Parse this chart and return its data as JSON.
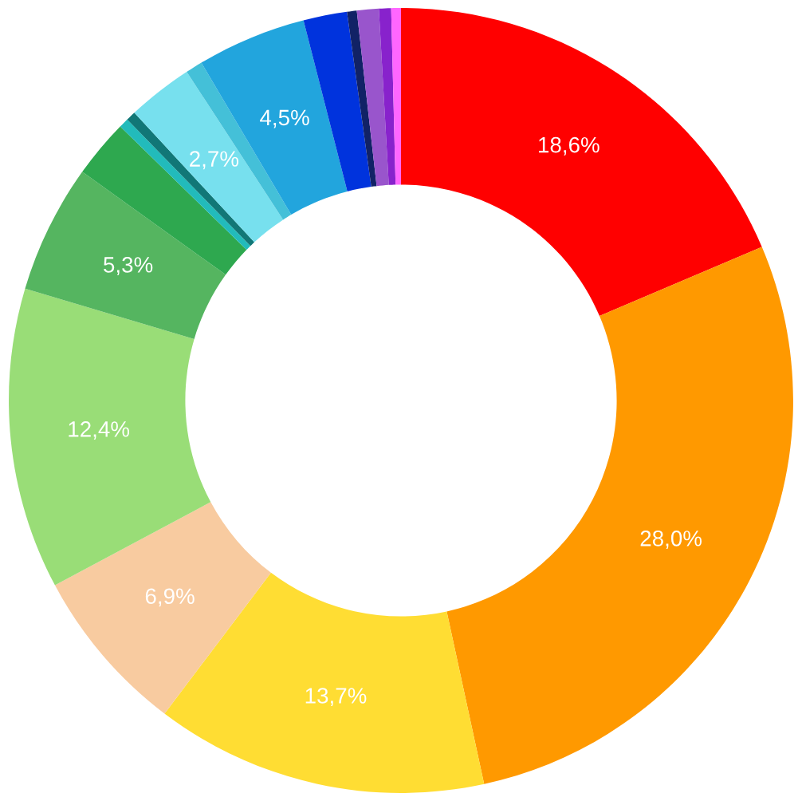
{
  "chart_data": {
    "type": "donut",
    "categories": [
      null,
      null,
      null,
      null,
      null,
      null,
      null,
      null,
      null,
      null,
      null,
      null,
      null,
      null,
      null,
      null,
      null
    ],
    "values": [
      18.6,
      28.0,
      13.7,
      6.9,
      12.4,
      5.3,
      2.4,
      0.4,
      0.4,
      2.7,
      0.7,
      4.5,
      1.8,
      0.4,
      0.9,
      0.5,
      0.4
    ],
    "value_labels": [
      "18,6%",
      "28,0%",
      "13,7%",
      "6,9%",
      "12,4%",
      "5,3%",
      null,
      null,
      null,
      "2,7%",
      null,
      "4,5%",
      null,
      null,
      null,
      null,
      null
    ],
    "colors": [
      "#ff0000",
      "#ff9900",
      "#ffdd33",
      "#f8cba0",
      "#99dd77",
      "#55b560",
      "#2ea84f",
      "#22bbbb",
      "#117777",
      "#77e0ee",
      "#44c0d8",
      "#22a5dd",
      "#0033dd",
      "#112266",
      "#9955cc",
      "#8822cc",
      "#ff66ff"
    ]
  }
}
